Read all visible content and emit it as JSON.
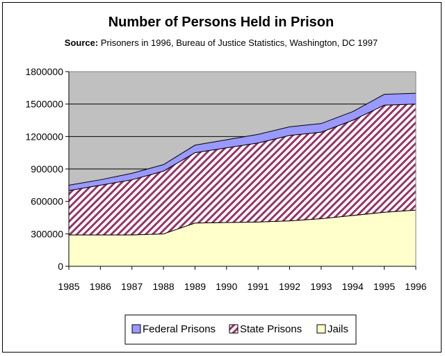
{
  "chart_data": {
    "type": "area",
    "stacked": true,
    "title": "Number of Persons Held in Prison",
    "subtitle_label": "Source:",
    "subtitle_text": "Prisoners in 1996, Bureau of Justice Statistics, Washington, DC 1997",
    "x": [
      "1985",
      "1986",
      "1987",
      "1988",
      "1989",
      "1990",
      "1991",
      "1992",
      "1993",
      "1994",
      "1995",
      "1996"
    ],
    "ylim": [
      0,
      1800000
    ],
    "y_ticks": [
      0,
      300000,
      600000,
      900000,
      1200000,
      1500000,
      1800000
    ],
    "y_tick_labels": [
      "0",
      "300000",
      "600000",
      "900000",
      "1200000",
      "1500000",
      "1800000"
    ],
    "grid": true,
    "legend_position": "bottom",
    "series": [
      {
        "name": "Jails",
        "color": "#ffffcc",
        "values": [
          290000,
          290000,
          290000,
          300000,
          400000,
          405000,
          410000,
          420000,
          440000,
          470000,
          500000,
          520000
        ]
      },
      {
        "name": "State Prisons",
        "color": "#993366",
        "pattern": "diagonal-stripes",
        "values": [
          410000,
          460000,
          510000,
          580000,
          650000,
          690000,
          730000,
          790000,
          800000,
          880000,
          990000,
          980000
        ]
      },
      {
        "name": "Federal Prisons",
        "color": "#9999ff",
        "values": [
          50000,
          50000,
          60000,
          60000,
          70000,
          75000,
          80000,
          80000,
          80000,
          80000,
          100000,
          100000
        ]
      }
    ],
    "legend_order": [
      "Federal Prisons",
      "State Prisons",
      "Jails"
    ],
    "plot_background": "#c0c0c0"
  }
}
